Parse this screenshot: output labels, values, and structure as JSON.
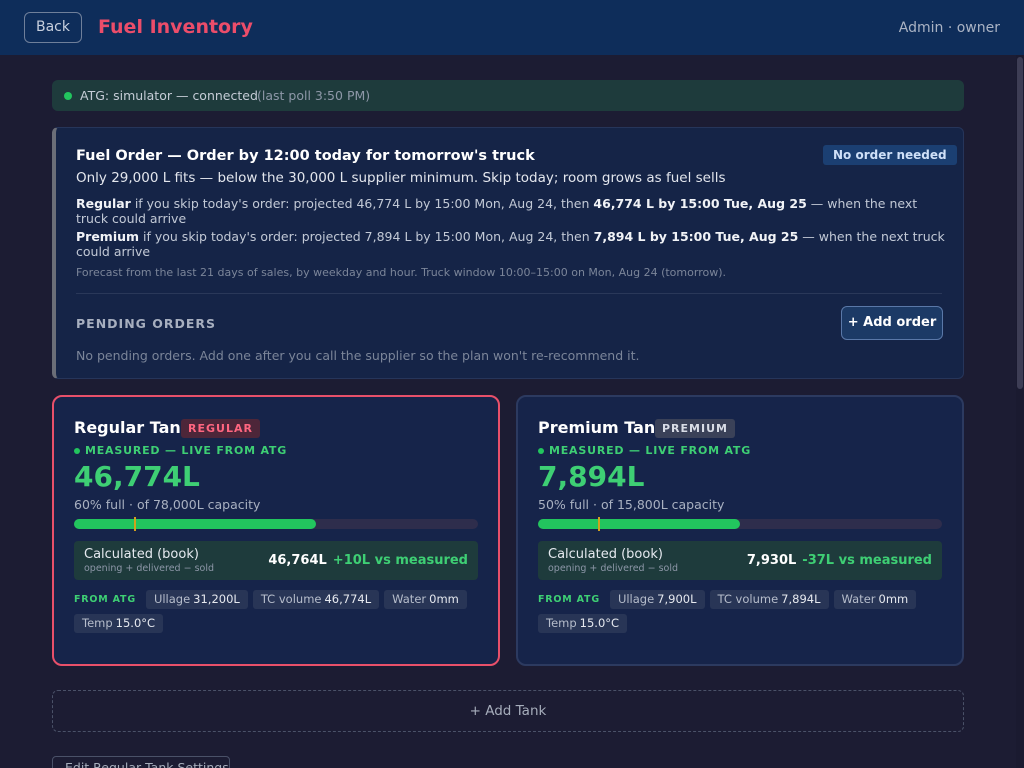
{
  "header": {
    "back_label": "Back",
    "title": "Fuel Inventory",
    "user": "Admin · owner"
  },
  "atg": {
    "status": "ATG: simulator — connected",
    "last_poll": "(last poll 3:50 PM)"
  },
  "fuel_order": {
    "title": "Fuel Order — Order by 12:00 today for tomorrow's truck",
    "badge": "No order needed",
    "subtitle": "Only 29,000 L fits — below the 30,000 L supplier minimum. Skip today; room grows as fuel sells",
    "projections": [
      {
        "grade": "Regular",
        "text": " if you skip today's order: projected 46,774 L by 15:00 Mon, Aug 24, then ",
        "highlight": "46,774 L by 15:00 Tue, Aug 25",
        "tail": " — when the next truck could arrive"
      },
      {
        "grade": "Premium",
        "text": " if you skip today's order: projected 7,894 L by 15:00 Mon, Aug 24, then ",
        "highlight": "7,894 L by 15:00 Tue, Aug 25",
        "tail": " — when the next truck could arrive"
      }
    ],
    "forecast_note": "Forecast from the last 21 days of sales, by weekday and hour. Truck window 10:00–15:00 on Mon, Aug 24 (tomorrow).",
    "pending_heading": "PENDING ORDERS",
    "add_order_label": "+ Add order",
    "pending_empty": "No pending orders. Add one after you call the supplier so the plan won't re-recommend it."
  },
  "tanks": [
    {
      "name": "Regular Tank",
      "badge": "REGULAR",
      "measured_label": "MEASURED — LIVE FROM ATG",
      "level": "46,774L",
      "capacity_text": "60% full · of 78,000L capacity",
      "fill_percent": 60,
      "calc_label": "Calculated (book)",
      "calc_sub": "opening + delivered − sold",
      "calc_value": "46,764L",
      "calc_diff": "+10L vs measured",
      "from_atg": "FROM ATG",
      "stats": [
        {
          "label": "Ullage",
          "value": "31,200L"
        },
        {
          "label": "TC volume",
          "value": "46,774L"
        },
        {
          "label": "Water",
          "value": "0mm"
        },
        {
          "label": "Temp",
          "value": "15.0°C"
        }
      ]
    },
    {
      "name": "Premium Tank",
      "badge": "PREMIUM",
      "measured_label": "MEASURED — LIVE FROM ATG",
      "level": "7,894L",
      "capacity_text": "50% full · of 15,800L capacity",
      "fill_percent": 50,
      "calc_label": "Calculated (book)",
      "calc_sub": "opening + delivered − sold",
      "calc_value": "7,930L",
      "calc_diff": "-37L vs measured",
      "from_atg": "FROM ATG",
      "stats": [
        {
          "label": "Ullage",
          "value": "7,900L"
        },
        {
          "label": "TC volume",
          "value": "7,894L"
        },
        {
          "label": "Water",
          "value": "0mm"
        },
        {
          "label": "Temp",
          "value": "15.0°C"
        }
      ]
    }
  ],
  "add_tank_label": "+ Add Tank",
  "edit_partial_label": "Edit Regular Tank Settings",
  "colors": {
    "accent_title": "#ec4d6a",
    "measured_green": "#3ecf74",
    "header_bg": "#0e2d5a",
    "page_bg": "#1c1c33"
  }
}
